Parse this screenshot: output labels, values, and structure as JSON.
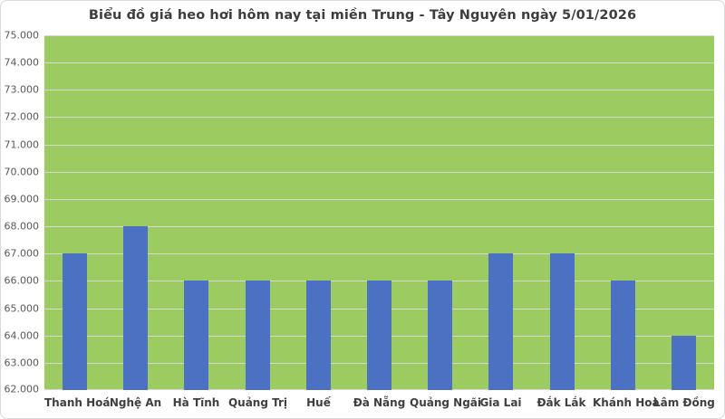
{
  "chart_data": {
    "type": "bar",
    "title": "Biểu đồ giá heo hơi hôm nay tại miền Trung - Tây Nguyên ngày 5/01/2026",
    "categories": [
      "Thanh Hoá",
      "Nghệ An",
      "Hà Tĩnh",
      "Quảng Trị",
      "Huế",
      "Đà Nẵng",
      "Quảng Ngãi",
      "Gia Lai",
      "Đắk Lắk",
      "Khánh Hoà",
      "Lâm Đồng"
    ],
    "values": [
      67000,
      68000,
      66000,
      66000,
      66000,
      66000,
      66000,
      67000,
      67000,
      66000,
      64000
    ],
    "xlabel": "",
    "ylabel": "",
    "ylim": [
      62000,
      75000
    ],
    "ytick_step": 1000,
    "ytick_labels_top_to_bottom": [
      "75.000",
      "74.000",
      "73.000",
      "72.000",
      "71.000",
      "70.000",
      "69.000",
      "68.000",
      "67.000",
      "66.000",
      "65.000",
      "64.000",
      "63.000",
      "62.000"
    ],
    "grid": true,
    "legend": false,
    "colors": {
      "bar": "#4c70c2",
      "plot_background": "#9ccb62",
      "gridline": "#d6d9d2",
      "title_text": "#3d3d3d",
      "ytick_text": "#595959",
      "xtick_text": "#3f3f3f",
      "chart_border": "#d9d9d9"
    }
  }
}
